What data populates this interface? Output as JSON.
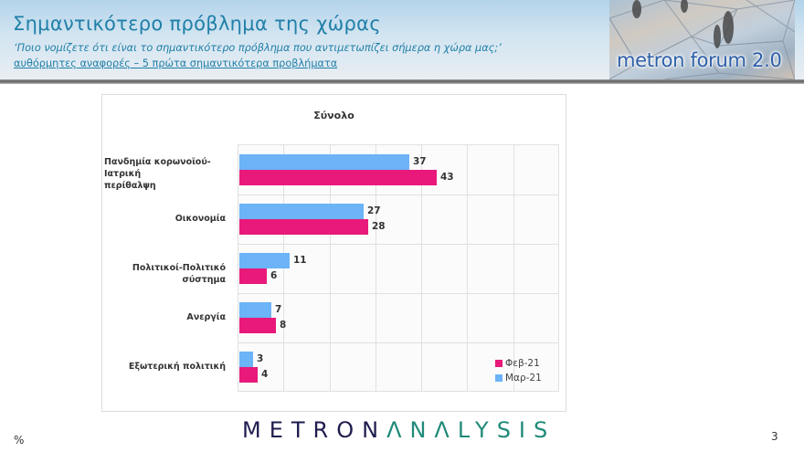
{
  "header": {
    "title": "Σημαντικότερο πρόβλημα της χώρας",
    "question": "‘Ποιο νομίζετε ότι  είναι το σημαντικότερο πρόβλημα που αντιμετωπίζει σήμερα η χώρα μας;’",
    "note": "αυθόρμητες αναφορές – 5 πρώτα σημαντικότερα προβλήματα",
    "logo_text": "metron forum 2.0"
  },
  "colors": {
    "feb": "#e8197a",
    "mar": "#6cb3f7",
    "title": "#1f7fa8",
    "brand_dark": "#1f1d4f",
    "brand_teal": "#1f8a78"
  },
  "chart_data": {
    "type": "bar",
    "orientation": "horizontal",
    "title": "Σύνολο",
    "categories": [
      "Πανδημία κορωνοϊού-Ιατρική περίθαλψη",
      "Οικονομία",
      "Πολιτικοί-Πολιτικό σύστημα",
      "Ανεργία",
      "Εξωτερική πολιτική"
    ],
    "category_lines": [
      [
        "Πανδημία κορωνοϊού-Ιατρική",
        "περίθαλψη"
      ],
      [
        "Οικονομία"
      ],
      [
        "Πολιτικοί-Πολιτικό σύστημα"
      ],
      [
        "Ανεργία"
      ],
      [
        "Εξωτερική πολιτική"
      ]
    ],
    "series": [
      {
        "name": "Μαρ-21",
        "color": "#6cb3f7",
        "values": [
          37,
          27,
          11,
          7,
          3
        ]
      },
      {
        "name": "Φεβ-21",
        "color": "#e8197a",
        "values": [
          43,
          28,
          6,
          8,
          4
        ]
      }
    ],
    "xlabel": "",
    "ylabel": "",
    "xlim": [
      0,
      70
    ],
    "grid": true,
    "gridline_step": 10,
    "data_labels": true,
    "legend": {
      "position": "bottom-right",
      "entries": [
        "Φεβ-21",
        "Μαρ-21"
      ]
    }
  },
  "footer": {
    "unit": "%",
    "brand_part1": "METRON",
    "brand_part2": "ΛNΛLYSIS",
    "page_number": "3"
  }
}
